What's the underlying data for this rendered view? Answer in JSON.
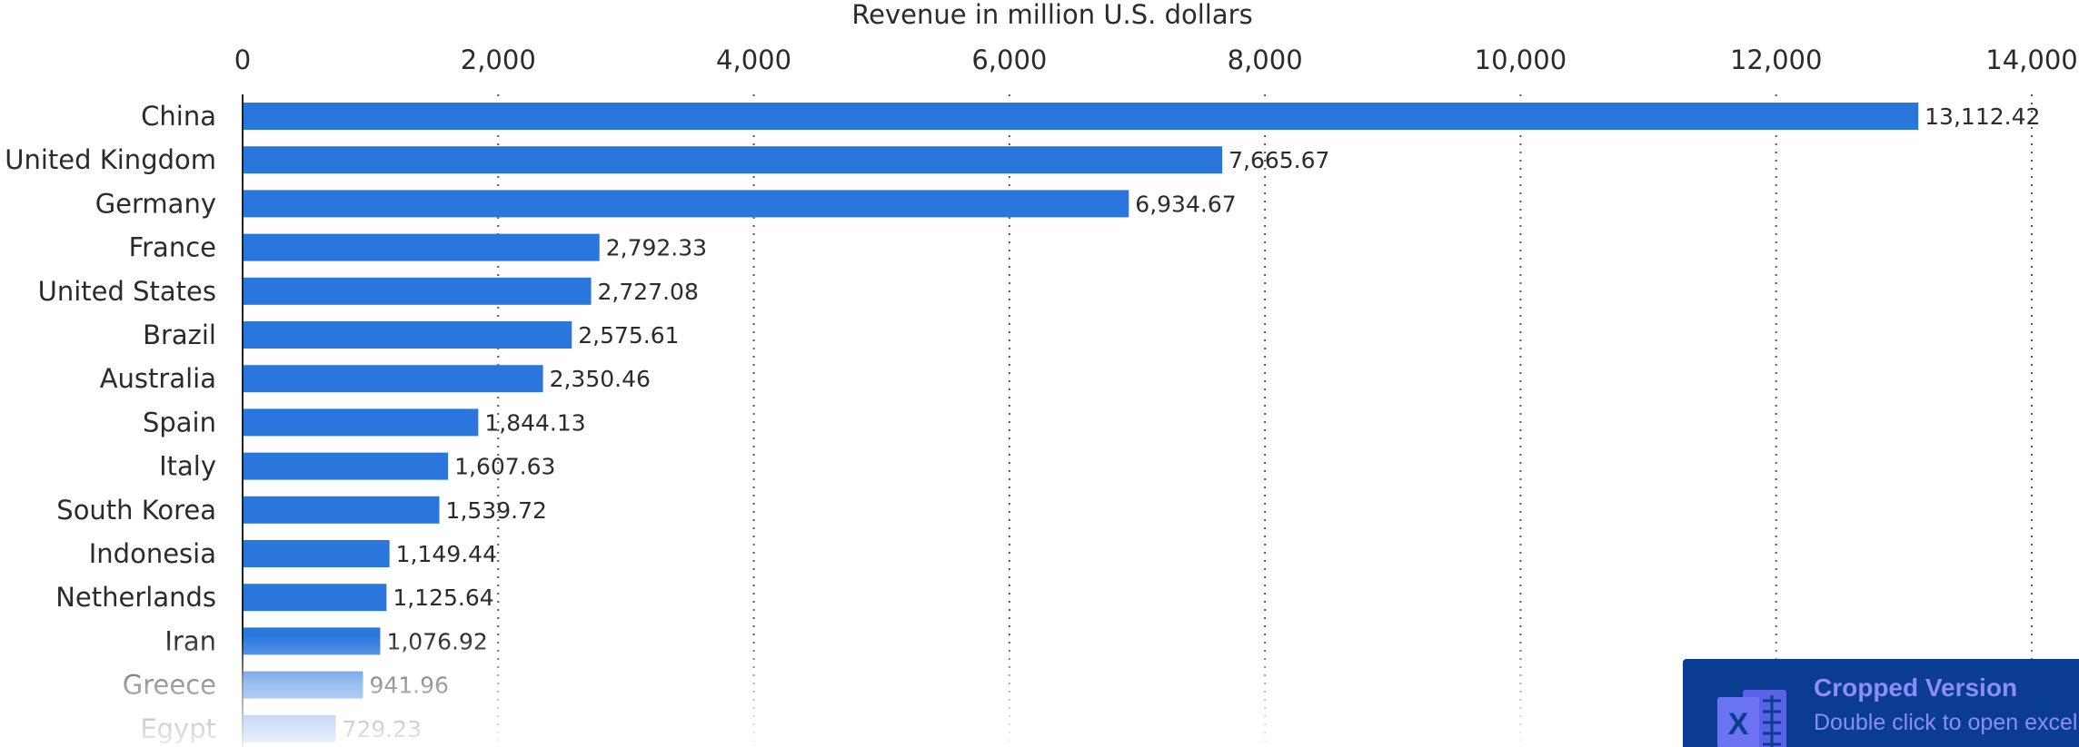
{
  "chart_data": {
    "type": "bar",
    "orientation": "horizontal",
    "xlabel": "Revenue in million U.S. dollars",
    "xlim": [
      0,
      14000
    ],
    "xticks": [
      0,
      2000,
      4000,
      6000,
      8000,
      10000,
      12000,
      14000
    ],
    "xtick_labels": [
      "0",
      "2,000",
      "4,000",
      "6,000",
      "8,000",
      "10,000",
      "12,000",
      "14,000"
    ],
    "grid": "vertical dotted",
    "categories": [
      "China",
      "United Kingdom",
      "Germany",
      "France",
      "United States",
      "Brazil",
      "Australia",
      "Spain",
      "Italy",
      "South Korea",
      "Indonesia",
      "Netherlands",
      "Iran",
      "Greece",
      "Egypt"
    ],
    "values": [
      13112.42,
      7665.67,
      6934.67,
      2792.33,
      2727.08,
      2575.61,
      2350.46,
      1844.13,
      1607.63,
      1539.72,
      1149.44,
      1125.64,
      1076.92,
      941.96,
      729.23
    ],
    "value_labels": [
      "13,112.42",
      "7,665.67",
      "6,934.67",
      "2,792.33",
      "2,727.08",
      "2,575.61",
      "2,350.46",
      "1,844.13",
      "1,607.63",
      "1,539.72",
      "1,149.44",
      "1,125.64",
      "1,076.92",
      "941.96",
      "729.23"
    ],
    "bar_color": "#2a76dd"
  },
  "badge": {
    "title": "Cropped Version",
    "subtitle": "Double click to open excel",
    "icon": "excel-icon",
    "background": "#0a3d91",
    "text_color": "#8a8ef6"
  }
}
